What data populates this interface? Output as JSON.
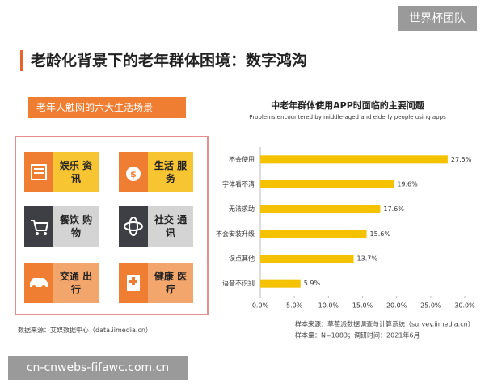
{
  "watermark_top": "世界杯团队",
  "title": "老龄化背景下的老年群体困境：数字鸿沟",
  "panel": {
    "heading": "老年人触网的六大生活场景",
    "scenes": [
      "娱乐 资讯",
      "生活 服务",
      "餐饮 购物",
      "社交 通讯",
      "交通 出行",
      "健康 医疗"
    ]
  },
  "source": "数据来源：艾媒数据中心（data.iimedia.cn）",
  "chart_data": {
    "type": "bar",
    "orientation": "horizontal",
    "title": "中老年群体使用APP时面临的主要问题",
    "subtitle": "Problems encountered by middle-aged and elderly people using apps",
    "categories": [
      "不会使用",
      "字体看不清",
      "无法求助",
      "不会安装升级",
      "误点其他",
      "语音不识别"
    ],
    "values": [
      27.5,
      19.6,
      17.6,
      15.6,
      13.7,
      5.9
    ],
    "value_labels": [
      "27.5%",
      "19.6%",
      "17.6%",
      "15.6%",
      "13.7%",
      "5.9%"
    ],
    "color": "#f5c200",
    "xlim": [
      0,
      30
    ],
    "xticks": [
      {
        "value": 0,
        "label": "0.0%"
      },
      {
        "value": 5,
        "label": "5.0%"
      },
      {
        "value": 10,
        "label": "10.0%"
      },
      {
        "value": 15,
        "label": "15.0%"
      },
      {
        "value": 20,
        "label": "20.0%"
      },
      {
        "value": 25,
        "label": "25.0%"
      },
      {
        "value": 30,
        "label": "30.0%"
      }
    ],
    "notes": [
      "样本来源：草莓派数据调查与计算系统（survey.iimedia.cn）",
      "样本量：N=1083；调研时间：2021年6月"
    ]
  },
  "watermark_bottom": "cn-cnwebs-fifawc.com.cn"
}
